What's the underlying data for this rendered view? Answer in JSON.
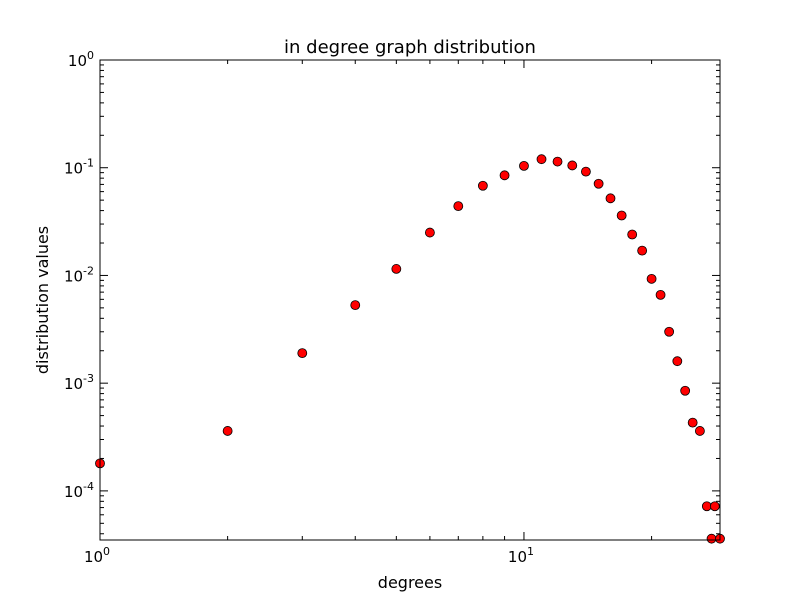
{
  "chart_data": {
    "type": "scatter",
    "title": "in degree graph distribution",
    "xlabel": "degrees",
    "ylabel": "distribution values",
    "xscale": "log",
    "yscale": "log",
    "xlim": [
      1,
      29
    ],
    "ylim": [
      3.5e-05,
      1
    ],
    "grid": false,
    "marker_color": "#ff0000",
    "marker_edge_color": "#000000",
    "x_ticks": [
      {
        "base": "10",
        "exp": "0",
        "value": 1
      },
      {
        "base": "10",
        "exp": "1",
        "value": 10
      }
    ],
    "y_ticks": [
      {
        "base": "10",
        "exp": "0",
        "value": 1
      },
      {
        "base": "10",
        "exp": "-1",
        "value": 0.1
      },
      {
        "base": "10",
        "exp": "-2",
        "value": 0.01
      },
      {
        "base": "10",
        "exp": "-3",
        "value": 0.001
      },
      {
        "base": "10",
        "exp": "-4",
        "value": 0.0001
      }
    ],
    "points": [
      {
        "x": 1,
        "y": 0.00018
      },
      {
        "x": 2,
        "y": 0.00036
      },
      {
        "x": 3,
        "y": 0.0019
      },
      {
        "x": 4,
        "y": 0.0053
      },
      {
        "x": 5,
        "y": 0.0115
      },
      {
        "x": 6,
        "y": 0.025
      },
      {
        "x": 7,
        "y": 0.044
      },
      {
        "x": 8,
        "y": 0.068
      },
      {
        "x": 9,
        "y": 0.085
      },
      {
        "x": 10,
        "y": 0.104
      },
      {
        "x": 11,
        "y": 0.12
      },
      {
        "x": 12,
        "y": 0.114
      },
      {
        "x": 13,
        "y": 0.105
      },
      {
        "x": 14,
        "y": 0.092
      },
      {
        "x": 15,
        "y": 0.071
      },
      {
        "x": 16,
        "y": 0.052
      },
      {
        "x": 17,
        "y": 0.036
      },
      {
        "x": 18,
        "y": 0.024
      },
      {
        "x": 19,
        "y": 0.017
      },
      {
        "x": 20,
        "y": 0.0093
      },
      {
        "x": 21,
        "y": 0.0066
      },
      {
        "x": 22,
        "y": 0.003
      },
      {
        "x": 23,
        "y": 0.0016
      },
      {
        "x": 24,
        "y": 0.00085
      },
      {
        "x": 25,
        "y": 0.00043
      },
      {
        "x": 26,
        "y": 0.00036
      },
      {
        "x": 27,
        "y": 7.2e-05
      },
      {
        "x": 27.7,
        "y": 3.6e-05
      },
      {
        "x": 28.2,
        "y": 7.2e-05
      },
      {
        "x": 29,
        "y": 3.6e-05
      }
    ]
  }
}
